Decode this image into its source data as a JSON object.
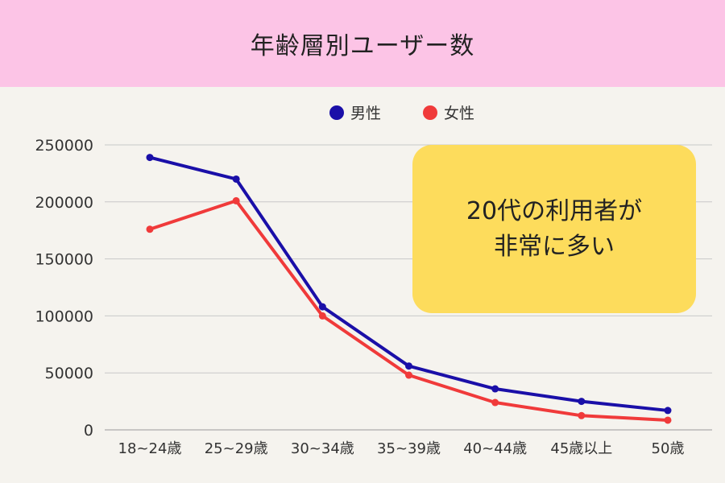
{
  "header": {
    "title": "年齢層別ユーザー数"
  },
  "callout": {
    "line1": "20代の利用者が",
    "line2": "非常に多い"
  },
  "colors": {
    "male": "#1a0fa8",
    "female": "#f03a3a",
    "header_bg": "#fcc4e6",
    "callout_bg": "#fddc5c",
    "grid": "#c8c8c8"
  },
  "chart_data": {
    "type": "line",
    "title": "年齢層別ユーザー数",
    "xlabel": "",
    "ylabel": "",
    "categories": [
      "18~24歳",
      "25~29歳",
      "30~34歳",
      "35~39歳",
      "40~44歳",
      "45歳以上",
      "50歳"
    ],
    "series": [
      {
        "name": "男性",
        "values": [
          239000,
          220000,
          108000,
          56000,
          36000,
          25000,
          17000
        ]
      },
      {
        "name": "女性",
        "values": [
          176000,
          201000,
          100000,
          48000,
          24000,
          12500,
          8500
        ]
      }
    ],
    "ylim": [
      0,
      250000
    ],
    "yticks": [
      0,
      50000,
      100000,
      150000,
      200000,
      250000
    ],
    "grid": true,
    "legend": "top-center"
  }
}
